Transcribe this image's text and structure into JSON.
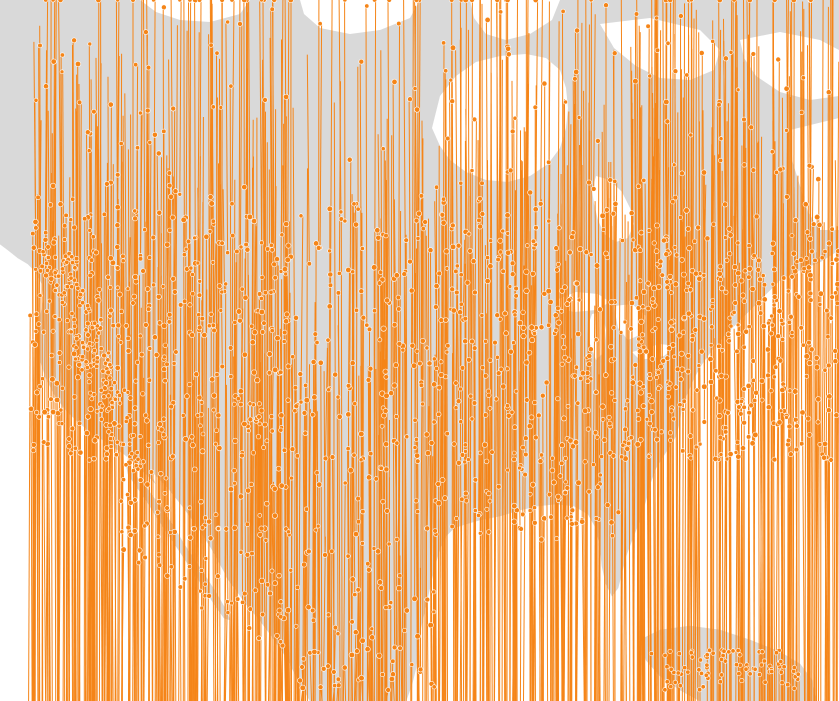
{
  "map": {
    "type": "map",
    "projection": "north-america",
    "title": "",
    "colors": {
      "land": "#d9d9d9",
      "water": "#ffffff",
      "marker": "#f58518",
      "marker_stroke": "#ffffff"
    },
    "layers": [
      "land-basemap",
      "marker-connectors",
      "point-markers"
    ],
    "marker_shape": "circle",
    "points_note": "",
    "point_count": 1400
  }
}
